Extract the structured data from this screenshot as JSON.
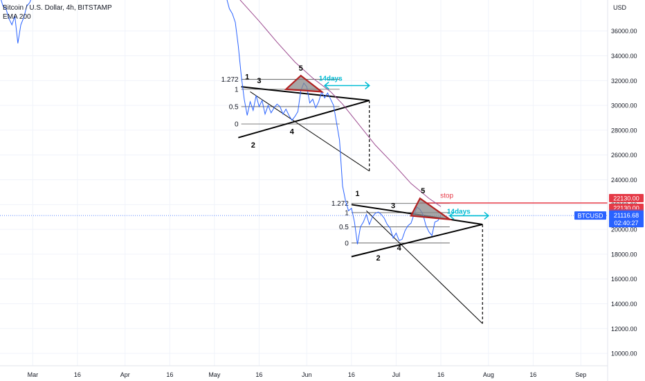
{
  "header": {
    "symbol_line": "Bitcoin / U.S. Dollar, 4h, BITSTAMP",
    "indicator": "EMA 200"
  },
  "colors": {
    "price_line": "#2962ff",
    "ema_line": "#9c4a8f",
    "pattern": "#000000",
    "triangle_fill": "#8a8a8a",
    "triangle_stroke": "#b22222",
    "arrow": "#00bcd4",
    "stop_line": "#e53946",
    "tag_stop": "#e53946",
    "tag_ema": "#9c4a8f",
    "tag_price": "#2962ff",
    "grid": "#f0f3fa",
    "axis_text": "#131722"
  },
  "chart_data": {
    "type": "line",
    "title": "Bitcoin / U.S. Dollar, 4h, BITSTAMP",
    "ylabel": "USD",
    "ylim": [
      9000,
      38500
    ],
    "xlim": [
      "2022-02-18",
      "2022-09-10"
    ],
    "y_ticks": [
      "10000.00",
      "12000.00",
      "14000.00",
      "16000.00",
      "18000.00",
      "20000.00",
      "22000.00",
      "24000.00",
      "26000.00",
      "28000.00",
      "30000.00",
      "32000.00",
      "34000.00",
      "36000.00"
    ],
    "x_ticks": [
      {
        "label": "Mar",
        "date": "2022-03-01"
      },
      {
        "label": "16",
        "date": "2022-03-16"
      },
      {
        "label": "Apr",
        "date": "2022-04-01"
      },
      {
        "label": "16",
        "date": "2022-04-16"
      },
      {
        "label": "May",
        "date": "2022-05-01"
      },
      {
        "label": "16",
        "date": "2022-05-16"
      },
      {
        "label": "Jun",
        "date": "2022-06-01"
      },
      {
        "label": "16",
        "date": "2022-06-16"
      },
      {
        "label": "Jul",
        "date": "2022-07-01"
      },
      {
        "label": "16",
        "date": "2022-07-16"
      },
      {
        "label": "Aug",
        "date": "2022-08-01"
      },
      {
        "label": "16",
        "date": "2022-08-16"
      },
      {
        "label": "Sep",
        "date": "2022-09-01"
      }
    ],
    "series": [
      {
        "name": "BTCUSD",
        "points": [
          [
            "2022-02-18",
            38800
          ],
          [
            "2022-02-19",
            38000
          ],
          [
            "2022-02-20",
            37800
          ],
          [
            "2022-02-21",
            37000
          ],
          [
            "2022-02-22",
            36500
          ],
          [
            "2022-02-23",
            37200
          ],
          [
            "2022-02-24",
            35000
          ],
          [
            "2022-02-25",
            36500
          ],
          [
            "2022-02-26",
            37100
          ],
          [
            "2022-02-27",
            38000
          ],
          [
            "2022-02-28",
            38300
          ],
          [
            "2022-03-01",
            38900
          ],
          [
            "2022-05-05",
            38700
          ],
          [
            "2022-05-06",
            37800
          ],
          [
            "2022-05-07",
            37400
          ],
          [
            "2022-05-08",
            36700
          ],
          [
            "2022-05-09",
            34800
          ],
          [
            "2022-05-10",
            32400
          ],
          [
            "2022-05-11",
            30500
          ],
          [
            "2022-05-12",
            29200
          ],
          [
            "2022-05-13",
            30300
          ],
          [
            "2022-05-14",
            29600
          ],
          [
            "2022-05-15",
            30800
          ],
          [
            "2022-05-16",
            29900
          ],
          [
            "2022-05-17",
            30400
          ],
          [
            "2022-05-18",
            29300
          ],
          [
            "2022-05-19",
            30000
          ],
          [
            "2022-05-20",
            29400
          ],
          [
            "2022-05-21",
            29800
          ],
          [
            "2022-05-22",
            30100
          ],
          [
            "2022-05-23",
            29900
          ],
          [
            "2022-05-24",
            29300
          ],
          [
            "2022-05-25",
            29700
          ],
          [
            "2022-05-26",
            29200
          ],
          [
            "2022-05-27",
            28800
          ],
          [
            "2022-05-28",
            29100
          ],
          [
            "2022-05-29",
            29500
          ],
          [
            "2022-05-30",
            31200
          ],
          [
            "2022-05-31",
            31800
          ],
          [
            "2022-06-01",
            31500
          ],
          [
            "2022-06-02",
            30200
          ],
          [
            "2022-06-03",
            30500
          ],
          [
            "2022-06-04",
            29800
          ],
          [
            "2022-06-05",
            30300
          ],
          [
            "2022-06-06",
            31100
          ],
          [
            "2022-06-07",
            30600
          ],
          [
            "2022-06-08",
            31000
          ],
          [
            "2022-06-09",
            30500
          ],
          [
            "2022-06-10",
            30000
          ],
          [
            "2022-06-11",
            28600
          ],
          [
            "2022-06-12",
            27200
          ],
          [
            "2022-06-13",
            23500
          ],
          [
            "2022-06-14",
            22300
          ],
          [
            "2022-06-15",
            21500
          ],
          [
            "2022-06-16",
            21700
          ],
          [
            "2022-06-17",
            20600
          ],
          [
            "2022-06-18",
            18800
          ],
          [
            "2022-06-19",
            20200
          ],
          [
            "2022-06-20",
            20600
          ],
          [
            "2022-06-21",
            21200
          ],
          [
            "2022-06-22",
            20400
          ],
          [
            "2022-06-23",
            21000
          ],
          [
            "2022-06-24",
            21300
          ],
          [
            "2022-06-25",
            21400
          ],
          [
            "2022-06-26",
            21200
          ],
          [
            "2022-06-27",
            20900
          ],
          [
            "2022-06-28",
            20400
          ],
          [
            "2022-06-29",
            20100
          ],
          [
            "2022-06-30",
            19300
          ],
          [
            "2022-07-01",
            19700
          ],
          [
            "2022-07-02",
            19100
          ],
          [
            "2022-07-03",
            19200
          ],
          [
            "2022-07-04",
            19900
          ],
          [
            "2022-07-05",
            20300
          ],
          [
            "2022-07-06",
            20500
          ],
          [
            "2022-07-07",
            21200
          ],
          [
            "2022-07-08",
            21800
          ],
          [
            "2022-07-09",
            21600
          ],
          [
            "2022-07-10",
            21200
          ],
          [
            "2022-07-11",
            20300
          ],
          [
            "2022-07-12",
            19800
          ],
          [
            "2022-07-13",
            19500
          ],
          [
            "2022-07-14",
            20600
          ],
          [
            "2022-07-15",
            20700
          ],
          [
            "2022-07-16",
            21116.68
          ]
        ]
      },
      {
        "name": "EMA 200",
        "points": [
          [
            "2022-05-04",
            40000
          ],
          [
            "2022-05-10",
            38400
          ],
          [
            "2022-05-16",
            36800
          ],
          [
            "2022-05-22",
            35100
          ],
          [
            "2022-05-28",
            33500
          ],
          [
            "2022-06-03",
            32200
          ],
          [
            "2022-06-09",
            31100
          ],
          [
            "2022-06-13",
            30100
          ],
          [
            "2022-06-18",
            28600
          ],
          [
            "2022-06-24",
            26800
          ],
          [
            "2022-06-30",
            25300
          ],
          [
            "2022-07-06",
            23700
          ],
          [
            "2022-07-12",
            22500
          ],
          [
            "2022-07-16",
            21838.25
          ]
        ]
      }
    ],
    "annotations": {
      "labels": [
        {
          "text": "1",
          "x": "2022-05-12",
          "y": 32100
        },
        {
          "text": "2",
          "x": "2022-05-14",
          "y": 26600
        },
        {
          "text": "3",
          "x": "2022-05-16",
          "y": 31800
        },
        {
          "text": "4",
          "x": "2022-05-27",
          "y": 27700
        },
        {
          "text": "5",
          "x": "2022-05-30",
          "y": 32800
        },
        {
          "text": "1",
          "x": "2022-06-18",
          "y": 22700
        },
        {
          "text": "2",
          "x": "2022-06-25",
          "y": 17500
        },
        {
          "text": "3",
          "x": "2022-06-30",
          "y": 21700
        },
        {
          "text": "4",
          "x": "2022-07-02",
          "y": 18300
        },
        {
          "text": "5",
          "x": "2022-07-10",
          "y": 22900
        },
        {
          "text": "14days",
          "x": "2022-06-09",
          "y": 32000,
          "kind": "arrow-label"
        },
        {
          "text": "14days",
          "x": "2022-07-22",
          "y": 21250,
          "kind": "arrow-label"
        },
        {
          "text": "stop",
          "x": "2022-07-18",
          "y": 22550,
          "kind": "stop-label"
        }
      ],
      "fib_sets": [
        {
          "levels": [
            {
              "label": "1.272",
              "value": 32100
            },
            {
              "label": "1",
              "value": 31300
            },
            {
              "label": "0.5",
              "value": 29900
            },
            {
              "label": "0",
              "value": 28500
            }
          ],
          "x_start": "2022-05-10",
          "x_end": "2022-06-12"
        },
        {
          "levels": [
            {
              "label": "1.272",
              "value": 22100
            },
            {
              "label": "1",
              "value": 21350
            },
            {
              "label": "0.5",
              "value": 20200
            },
            {
              "label": "0",
              "value": 18900
            }
          ],
          "x_start": "2022-06-16",
          "x_end": "2022-07-19"
        }
      ],
      "lines": [
        {
          "kind": "pattern",
          "from": [
            "2022-05-10",
            31500
          ],
          "to": [
            "2022-06-22",
            30400
          ]
        },
        {
          "kind": "pattern",
          "from": [
            "2022-05-09",
            27400
          ],
          "to": [
            "2022-06-22",
            30400
          ]
        },
        {
          "kind": "thin",
          "from": [
            "2022-05-13",
            31100
          ],
          "to": [
            "2022-06-22",
            24700
          ]
        },
        {
          "kind": "dashed",
          "from": [
            "2022-06-22",
            30400
          ],
          "to": [
            "2022-06-22",
            24700
          ]
        },
        {
          "kind": "pattern",
          "from": [
            "2022-06-16",
            22000
          ],
          "to": [
            "2022-07-30",
            20400
          ]
        },
        {
          "kind": "pattern",
          "from": [
            "2022-06-16",
            17800
          ],
          "to": [
            "2022-07-30",
            20400
          ]
        },
        {
          "kind": "thin",
          "from": [
            "2022-06-21",
            21500
          ],
          "to": [
            "2022-07-30",
            12400
          ]
        },
        {
          "kind": "dashed",
          "from": [
            "2022-07-30",
            20400
          ],
          "to": [
            "2022-07-30",
            12400
          ]
        }
      ],
      "triangles": [
        [
          [
            "2022-05-25",
            31300
          ],
          [
            "2022-05-30",
            32400
          ],
          [
            "2022-06-06",
            31100
          ]
        ],
        [
          [
            "2022-07-06",
            21100
          ],
          [
            "2022-07-09",
            22500
          ],
          [
            "2022-07-19",
            20800
          ]
        ]
      ],
      "arrows": [
        {
          "from": [
            "2022-06-07",
            31600
          ],
          "to": [
            "2022-06-22",
            31600
          ]
        },
        {
          "from": [
            "2022-07-19",
            21100
          ],
          "to": [
            "2022-08-01",
            21100
          ]
        }
      ],
      "stop_level": 22130
    }
  },
  "price_axis": {
    "currency": "USD",
    "tags": [
      {
        "label": "22130.00",
        "value": 22130,
        "color": "#e53946",
        "offset": -7
      },
      {
        "label": "22130.00",
        "value": 22130,
        "color": "#e53946",
        "offset": 7
      },
      {
        "label": "21838.25",
        "value": 21838.25,
        "color": "#9c4a8f",
        "offset": 10
      },
      {
        "label": "21116.68",
        "value": 21116.68,
        "color": "#2962ff",
        "offset": 0,
        "sub": "02:40:27"
      }
    ],
    "symbol_tag": "BTCUSD"
  }
}
